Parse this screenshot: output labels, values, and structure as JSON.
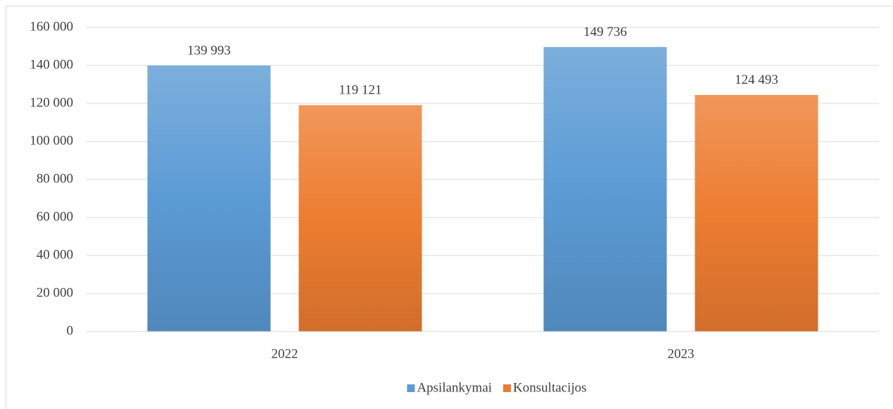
{
  "chart_data": {
    "type": "bar",
    "categories": [
      "2022",
      "2023"
    ],
    "series": [
      {
        "name": "Apsilankymai",
        "color": "#5b9bd5",
        "values": [
          139993,
          149736
        ],
        "value_labels": [
          "139 993",
          "149 736"
        ]
      },
      {
        "name": "Konsultacijos",
        "color": "#ed7d31",
        "values": [
          119121,
          124493
        ],
        "value_labels": [
          "119 121",
          "124 493"
        ]
      }
    ],
    "ylim": [
      0,
      160000
    ],
    "yticks": [
      0,
      {
        "value": 20000,
        "label": "20 000"
      },
      {
        "value": 40000,
        "label": "40 000"
      },
      {
        "value": 60000,
        "label": "60 000"
      },
      {
        "value": 80000,
        "label": "80 000"
      },
      {
        "value": 100000,
        "label": "100 000"
      },
      {
        "value": 120000,
        "label": "120 000"
      },
      {
        "value": 140000,
        "label": "140 000"
      },
      {
        "value": 160000,
        "label": "160 000"
      }
    ],
    "grid": true,
    "legend": "bottom"
  }
}
